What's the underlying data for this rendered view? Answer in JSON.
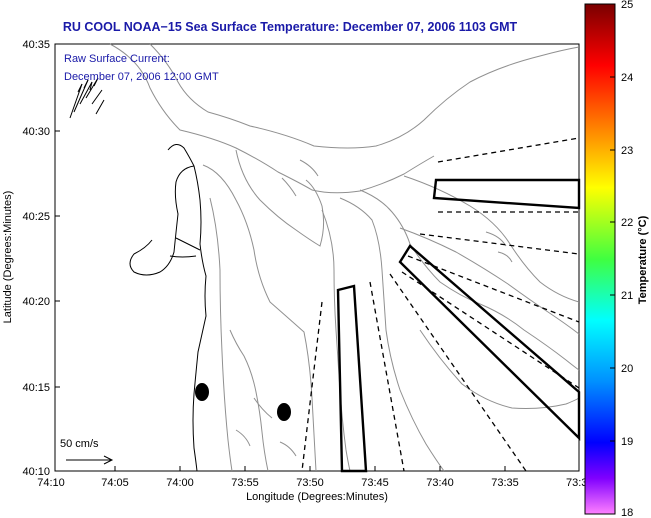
{
  "title": "RU COOL  NOAA−15  Sea Surface Temperature:  December 07, 2006 1103 GMT",
  "annotation": {
    "line1": "Raw Surface Current:",
    "line2": "December 07, 2006 12:00 GMT"
  },
  "axes": {
    "xlabel": "Longitude (Degrees:Minutes)",
    "ylabel": "Latitude (Degrees:Minutes)",
    "xticks": [
      "74:10",
      "74:05",
      "74:00",
      "73:55",
      "73:50",
      "73:45",
      "73:40",
      "73:35",
      "73:3"
    ],
    "yticks": [
      "40:35",
      "40:30",
      "40:25",
      "40:20",
      "40:15",
      "40:10"
    ]
  },
  "scale_vector": {
    "label": "50 cm/s"
  },
  "colorbar": {
    "title": "Temperature (°C)",
    "min": 18,
    "max": 25,
    "ticks": [
      "25",
      "24",
      "23",
      "22",
      "21",
      "20",
      "19",
      "18"
    ]
  },
  "map_features": {
    "markers": [
      "buoy-marker-1",
      "buoy-marker-2"
    ],
    "sectors": 4
  }
}
